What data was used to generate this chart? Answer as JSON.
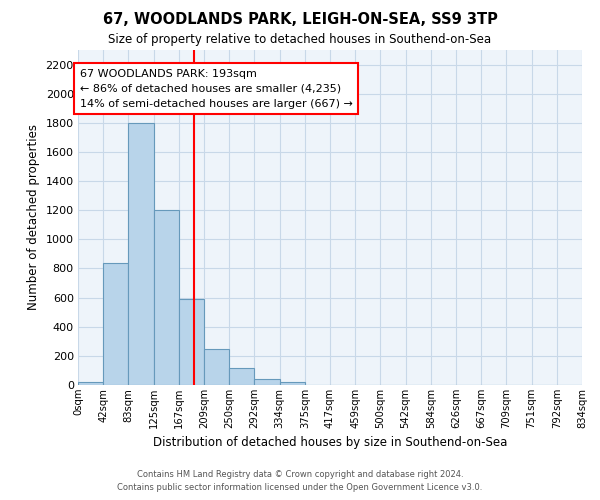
{
  "title": "67, WOODLANDS PARK, LEIGH-ON-SEA, SS9 3TP",
  "subtitle": "Size of property relative to detached houses in Southend-on-Sea",
  "xlabel": "Distribution of detached houses by size in Southend-on-Sea",
  "ylabel": "Number of detached properties",
  "bin_labels": [
    "0sqm",
    "42sqm",
    "83sqm",
    "125sqm",
    "167sqm",
    "209sqm",
    "250sqm",
    "292sqm",
    "334sqm",
    "375sqm",
    "417sqm",
    "459sqm",
    "500sqm",
    "542sqm",
    "584sqm",
    "626sqm",
    "667sqm",
    "709sqm",
    "751sqm",
    "792sqm",
    "834sqm"
  ],
  "bar_heights": [
    20,
    840,
    1800,
    1200,
    590,
    250,
    120,
    40,
    20,
    0,
    0,
    0,
    0,
    0,
    0,
    0,
    0,
    0,
    0,
    0
  ],
  "bar_color": "#b8d4ea",
  "bar_edge_color": "#6699bb",
  "vline_pos": 4.65,
  "vline_color": "red",
  "ylim": [
    0,
    2300
  ],
  "yticks": [
    0,
    200,
    400,
    600,
    800,
    1000,
    1200,
    1400,
    1600,
    1800,
    2000,
    2200
  ],
  "annotation_title": "67 WOODLANDS PARK: 193sqm",
  "annotation_line1": "← 86% of detached houses are smaller (4,235)",
  "annotation_line2": "14% of semi-detached houses are larger (667) →",
  "annotation_box_color": "#ffffff",
  "annotation_box_edge": "red",
  "footer1": "Contains HM Land Registry data © Crown copyright and database right 2024.",
  "footer2": "Contains public sector information licensed under the Open Government Licence v3.0.",
  "background_color": "#ffffff",
  "grid_color": "#c8d8e8",
  "plot_bg_color": "#eef4fa"
}
